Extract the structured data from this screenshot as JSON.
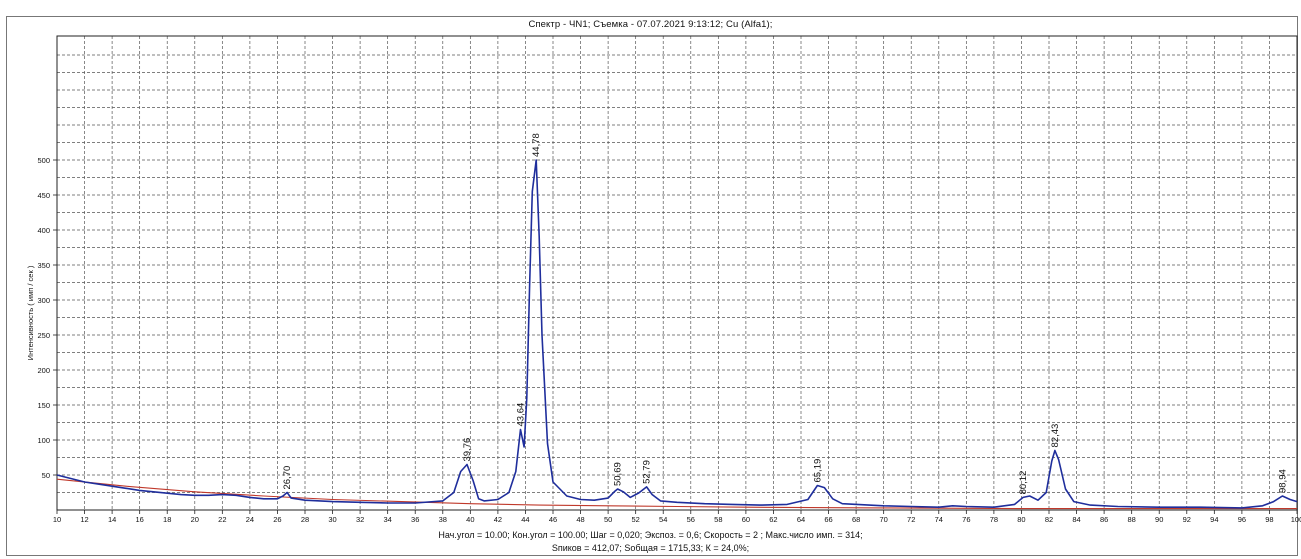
{
  "chart_data": {
    "type": "line",
    "title": "Спектр - ЧN1;  Съемка - 07.07.2021 9:13:12;  Cu (Alfa1);",
    "xlabel": "",
    "ylabel": "Интенсивность ( имп / сек )",
    "xlim": [
      10,
      100
    ],
    "ylim": [
      0,
      500
    ],
    "x_ticks": [
      10,
      12,
      14,
      16,
      18,
      20,
      22,
      24,
      26,
      28,
      30,
      32,
      34,
      36,
      38,
      40,
      42,
      44,
      46,
      48,
      50,
      52,
      54,
      56,
      58,
      60,
      62,
      64,
      66,
      68,
      70,
      72,
      74,
      76,
      78,
      80,
      82,
      84,
      86,
      88,
      90,
      92,
      94,
      96,
      98,
      100
    ],
    "y_ticks": [
      50,
      100,
      150,
      200,
      250,
      300,
      350,
      400,
      450,
      500
    ],
    "grid": true,
    "series": [
      {
        "color": "#1f2e9c",
        "x": [
          10,
          11,
          12,
          13,
          14,
          15,
          16,
          17,
          18,
          19,
          20,
          21,
          22,
          23,
          24,
          25,
          26,
          26.4,
          26.7,
          27,
          28,
          30,
          32,
          34,
          36,
          38,
          38.8,
          39.3,
          39.76,
          40.2,
          40.6,
          41,
          42,
          42.8,
          43.3,
          43.64,
          43.9,
          44.1,
          44.3,
          44.5,
          44.78,
          45.0,
          45.2,
          45.6,
          46,
          47,
          48,
          49,
          50,
          50.5,
          50.69,
          51.1,
          51.6,
          52.2,
          52.79,
          53.2,
          53.8,
          55,
          57,
          59,
          61,
          63,
          64.5,
          65.19,
          65.7,
          66.3,
          67,
          70,
          72,
          74,
          75,
          76,
          78,
          79.5,
          80.12,
          80.6,
          81.2,
          81.8,
          82.2,
          82.43,
          82.7,
          83.2,
          83.8,
          85,
          87,
          90,
          93,
          96,
          97.5,
          98.3,
          98.94,
          99.5,
          100
        ],
        "y": [
          50,
          45,
          40,
          37,
          34,
          31,
          28,
          26,
          24,
          22,
          21,
          21,
          22,
          21,
          18,
          16,
          16,
          20,
          25,
          17,
          14,
          12,
          11,
          10,
          10,
          13,
          25,
          55,
          65,
          42,
          16,
          13,
          15,
          25,
          55,
          115,
          90,
          160,
          320,
          455,
          500,
          390,
          250,
          95,
          40,
          20,
          15,
          14,
          17,
          27,
          30,
          26,
          18,
          24,
          33,
          22,
          13,
          11,
          9,
          8,
          7,
          8,
          15,
          35,
          32,
          16,
          9,
          6,
          5,
          4,
          6,
          5,
          4,
          8,
          18,
          20,
          14,
          25,
          70,
          85,
          72,
          30,
          12,
          7,
          5,
          4,
          4,
          3,
          6,
          12,
          20,
          15,
          12
        ]
      },
      {
        "color": "#c0392b",
        "x": [
          10,
          15,
          20,
          25,
          30,
          35,
          40,
          45,
          50,
          55,
          60,
          70,
          80,
          90,
          100
        ],
        "y": [
          44,
          34,
          26,
          20,
          15,
          12,
          9,
          7,
          6,
          5,
          4,
          3,
          2,
          2,
          2
        ]
      }
    ],
    "annotations": [
      {
        "x": 26.7,
        "y": 25,
        "text": "26,70"
      },
      {
        "x": 39.76,
        "y": 65,
        "text": "39,76"
      },
      {
        "x": 43.64,
        "y": 115,
        "text": "43,64"
      },
      {
        "x": 44.78,
        "y": 500,
        "text": "44,78"
      },
      {
        "x": 50.69,
        "y": 30,
        "text": "50,69"
      },
      {
        "x": 52.79,
        "y": 33,
        "text": "52,79"
      },
      {
        "x": 65.19,
        "y": 35,
        "text": "65,19"
      },
      {
        "x": 80.12,
        "y": 18,
        "text": "80,12"
      },
      {
        "x": 82.43,
        "y": 85,
        "text": "82,43"
      },
      {
        "x": 98.94,
        "y": 20,
        "text": "98,94"
      }
    ]
  },
  "footer": {
    "line1": "Нач.угол = 10.00;  Кон.угол = 100.00;  Шаг = 0,020;  Экспоз. = 0,6;  Скорость =   2 ;  Макс.число имп. = 314;",
    "line2": "Sпиков = 412,07;  Sобщая = 1715,33;  К = 24,0%;"
  }
}
